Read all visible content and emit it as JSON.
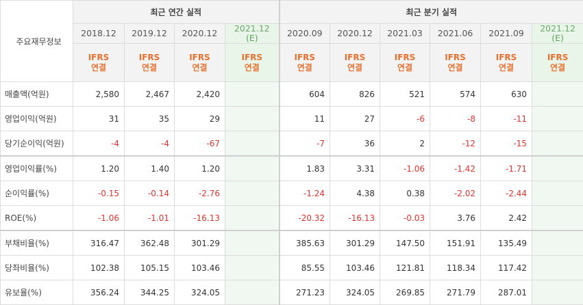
{
  "header": {
    "row_label": "주요재무정보",
    "annual_title": "최근 연간 실적",
    "quarterly_title": "최근 분기 실적",
    "annual_periods": [
      "2018.12",
      "2019.12",
      "2020.12",
      "2021.12"
    ],
    "annual_est_mark": "(E)",
    "quarterly_periods": [
      "2020.09",
      "2020.12",
      "2021.03",
      "2021.06",
      "2021.09",
      "2021.12"
    ],
    "quarterly_est_mark": "(E)",
    "ifrs_line1": "IFRS",
    "ifrs_line2": "연결"
  },
  "rows": [
    {
      "label": "매출액(억원)",
      "annual": [
        "2,580",
        "2,467",
        "2,420",
        ""
      ],
      "quarterly": [
        "604",
        "826",
        "521",
        "574",
        "630",
        ""
      ]
    },
    {
      "label": "영업이익(억원)",
      "annual": [
        "31",
        "35",
        "29",
        ""
      ],
      "quarterly": [
        "11",
        "27",
        "-6",
        "-8",
        "-11",
        ""
      ]
    },
    {
      "label": "당기순이익(억원)",
      "annual": [
        "-4",
        "-4",
        "-67",
        ""
      ],
      "quarterly": [
        "-7",
        "36",
        "2",
        "-12",
        "-15",
        ""
      ]
    },
    {
      "label": "영업이익률(%)",
      "annual": [
        "1.20",
        "1.40",
        "1.20",
        ""
      ],
      "quarterly": [
        "1.83",
        "3.31",
        "-1.06",
        "-1.42",
        "-1.71",
        ""
      ]
    },
    {
      "label": "순이익률(%)",
      "annual": [
        "-0.15",
        "-0.14",
        "-2.76",
        ""
      ],
      "quarterly": [
        "-1.24",
        "4.38",
        "0.38",
        "-2.02",
        "-2.44",
        ""
      ]
    },
    {
      "label": "ROE(%)",
      "annual": [
        "-1.06",
        "-1.01",
        "-16.13",
        ""
      ],
      "quarterly": [
        "-20.32",
        "-16.13",
        "-0.03",
        "3.76",
        "2.42",
        ""
      ]
    },
    {
      "label": "부채비율(%)",
      "annual": [
        "316.47",
        "362.48",
        "301.29",
        ""
      ],
      "quarterly": [
        "385.63",
        "301.29",
        "147.50",
        "151.91",
        "135.49",
        ""
      ]
    },
    {
      "label": "당좌비율(%)",
      "annual": [
        "102.38",
        "105.15",
        "103.46",
        ""
      ],
      "quarterly": [
        "85.55",
        "103.46",
        "121.81",
        "118.34",
        "117.42",
        ""
      ]
    },
    {
      "label": "유보율(%)",
      "annual": [
        "356.24",
        "344.25",
        "324.05",
        ""
      ],
      "quarterly": [
        "271.23",
        "324.05",
        "269.85",
        "271.79",
        "287.01",
        ""
      ]
    }
  ],
  "colors": {
    "negative": "#e0332e",
    "ifrs": "#e8702e",
    "estimate_bg": "#f1f8f1"
  }
}
